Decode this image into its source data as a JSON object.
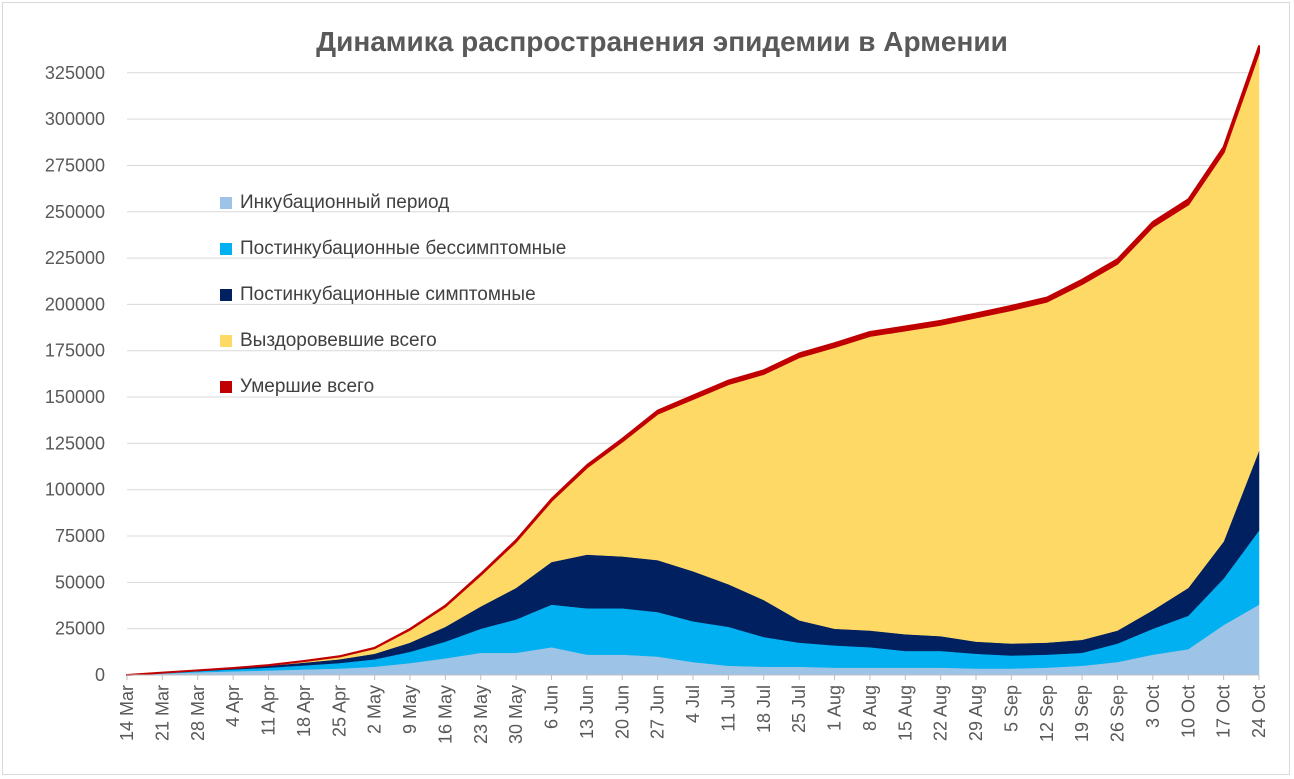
{
  "chart_data": {
    "type": "area",
    "stacked": true,
    "title": "Динамика распространения эпидемии в Армении",
    "xlabel": "",
    "ylabel": "",
    "ylim": [
      0,
      340000
    ],
    "yticks": [
      0,
      25000,
      50000,
      75000,
      100000,
      125000,
      150000,
      175000,
      200000,
      225000,
      250000,
      275000,
      300000,
      325000
    ],
    "x_tick_labels": [
      "14 Mar",
      "21 Mar",
      "28 Mar",
      "4 Apr",
      "11 Apr",
      "18 Apr",
      "25 Apr",
      "2 May",
      "9 May",
      "16 May",
      "23 May",
      "30 May",
      "6 Jun",
      "13 Jun",
      "20 Jun",
      "27 Jun",
      "4 Jul",
      "11 Jul",
      "18 Jul",
      "25 Jul",
      "1 Aug",
      "8 Aug",
      "15 Aug",
      "22 Aug",
      "29 Aug",
      "5 Sep",
      "12 Sep",
      "19 Sep",
      "26 Sep",
      "3 Oct",
      "10 Oct",
      "17 Oct",
      "24 Oct"
    ],
    "legend_position": "upper-left",
    "series": [
      {
        "name": "Инкубационный период",
        "color": "#9dc3e6",
        "values": [
          0,
          800,
          1500,
          2000,
          2500,
          3000,
          3500,
          4500,
          6500,
          9000,
          12000,
          12000,
          15000,
          11000,
          11000,
          10000,
          7000,
          5000,
          4500,
          4500,
          4000,
          4000,
          4000,
          4000,
          3500,
          3500,
          4000,
          5000,
          7000,
          11000,
          14000,
          27000,
          38000
        ]
      },
      {
        "name": "Постинкубационные бессимптомные",
        "color": "#00b0f0",
        "values": [
          0,
          300,
          600,
          1000,
          1500,
          2200,
          3000,
          4000,
          6000,
          9000,
          13000,
          18000,
          23000,
          25000,
          25000,
          24000,
          22000,
          21000,
          16000,
          13000,
          12000,
          11000,
          9000,
          9000,
          8000,
          7000,
          7000,
          7000,
          10000,
          14000,
          18000,
          25000,
          40000
        ]
      },
      {
        "name": "Постинкубационные симптомные",
        "color": "#002060",
        "values": [
          0,
          200,
          400,
          700,
          1000,
          1500,
          2000,
          3000,
          5000,
          8000,
          12000,
          17000,
          23000,
          29000,
          28000,
          28000,
          27000,
          23000,
          20000,
          12000,
          9000,
          9000,
          9000,
          8000,
          6500,
          6500,
          6500,
          7000,
          7000,
          10000,
          15000,
          20000,
          43000
        ]
      },
      {
        "name": "Выздоровевшие всего",
        "color": "#ffd966",
        "values": [
          0,
          0,
          0,
          100,
          300,
          800,
          1500,
          3000,
          7000,
          11000,
          17000,
          25000,
          33000,
          47000,
          62000,
          79000,
          93000,
          108000,
          122000,
          142000,
          152000,
          159000,
          164000,
          168000,
          175000,
          180000,
          184000,
          192000,
          198000,
          207000,
          207000,
          210000,
          215000
        ]
      },
      {
        "name": "Умершие всего",
        "color": "#c00000",
        "values": [
          0,
          0,
          0,
          0,
          20,
          40,
          100,
          200,
          300,
          450,
          600,
          800,
          1000,
          1200,
          1450,
          1650,
          1800,
          1900,
          1950,
          2000,
          2050,
          2100,
          2100,
          2100,
          2100,
          2200,
          2200,
          2300,
          2400,
          2500,
          2700,
          2900,
          3400
        ]
      }
    ]
  }
}
